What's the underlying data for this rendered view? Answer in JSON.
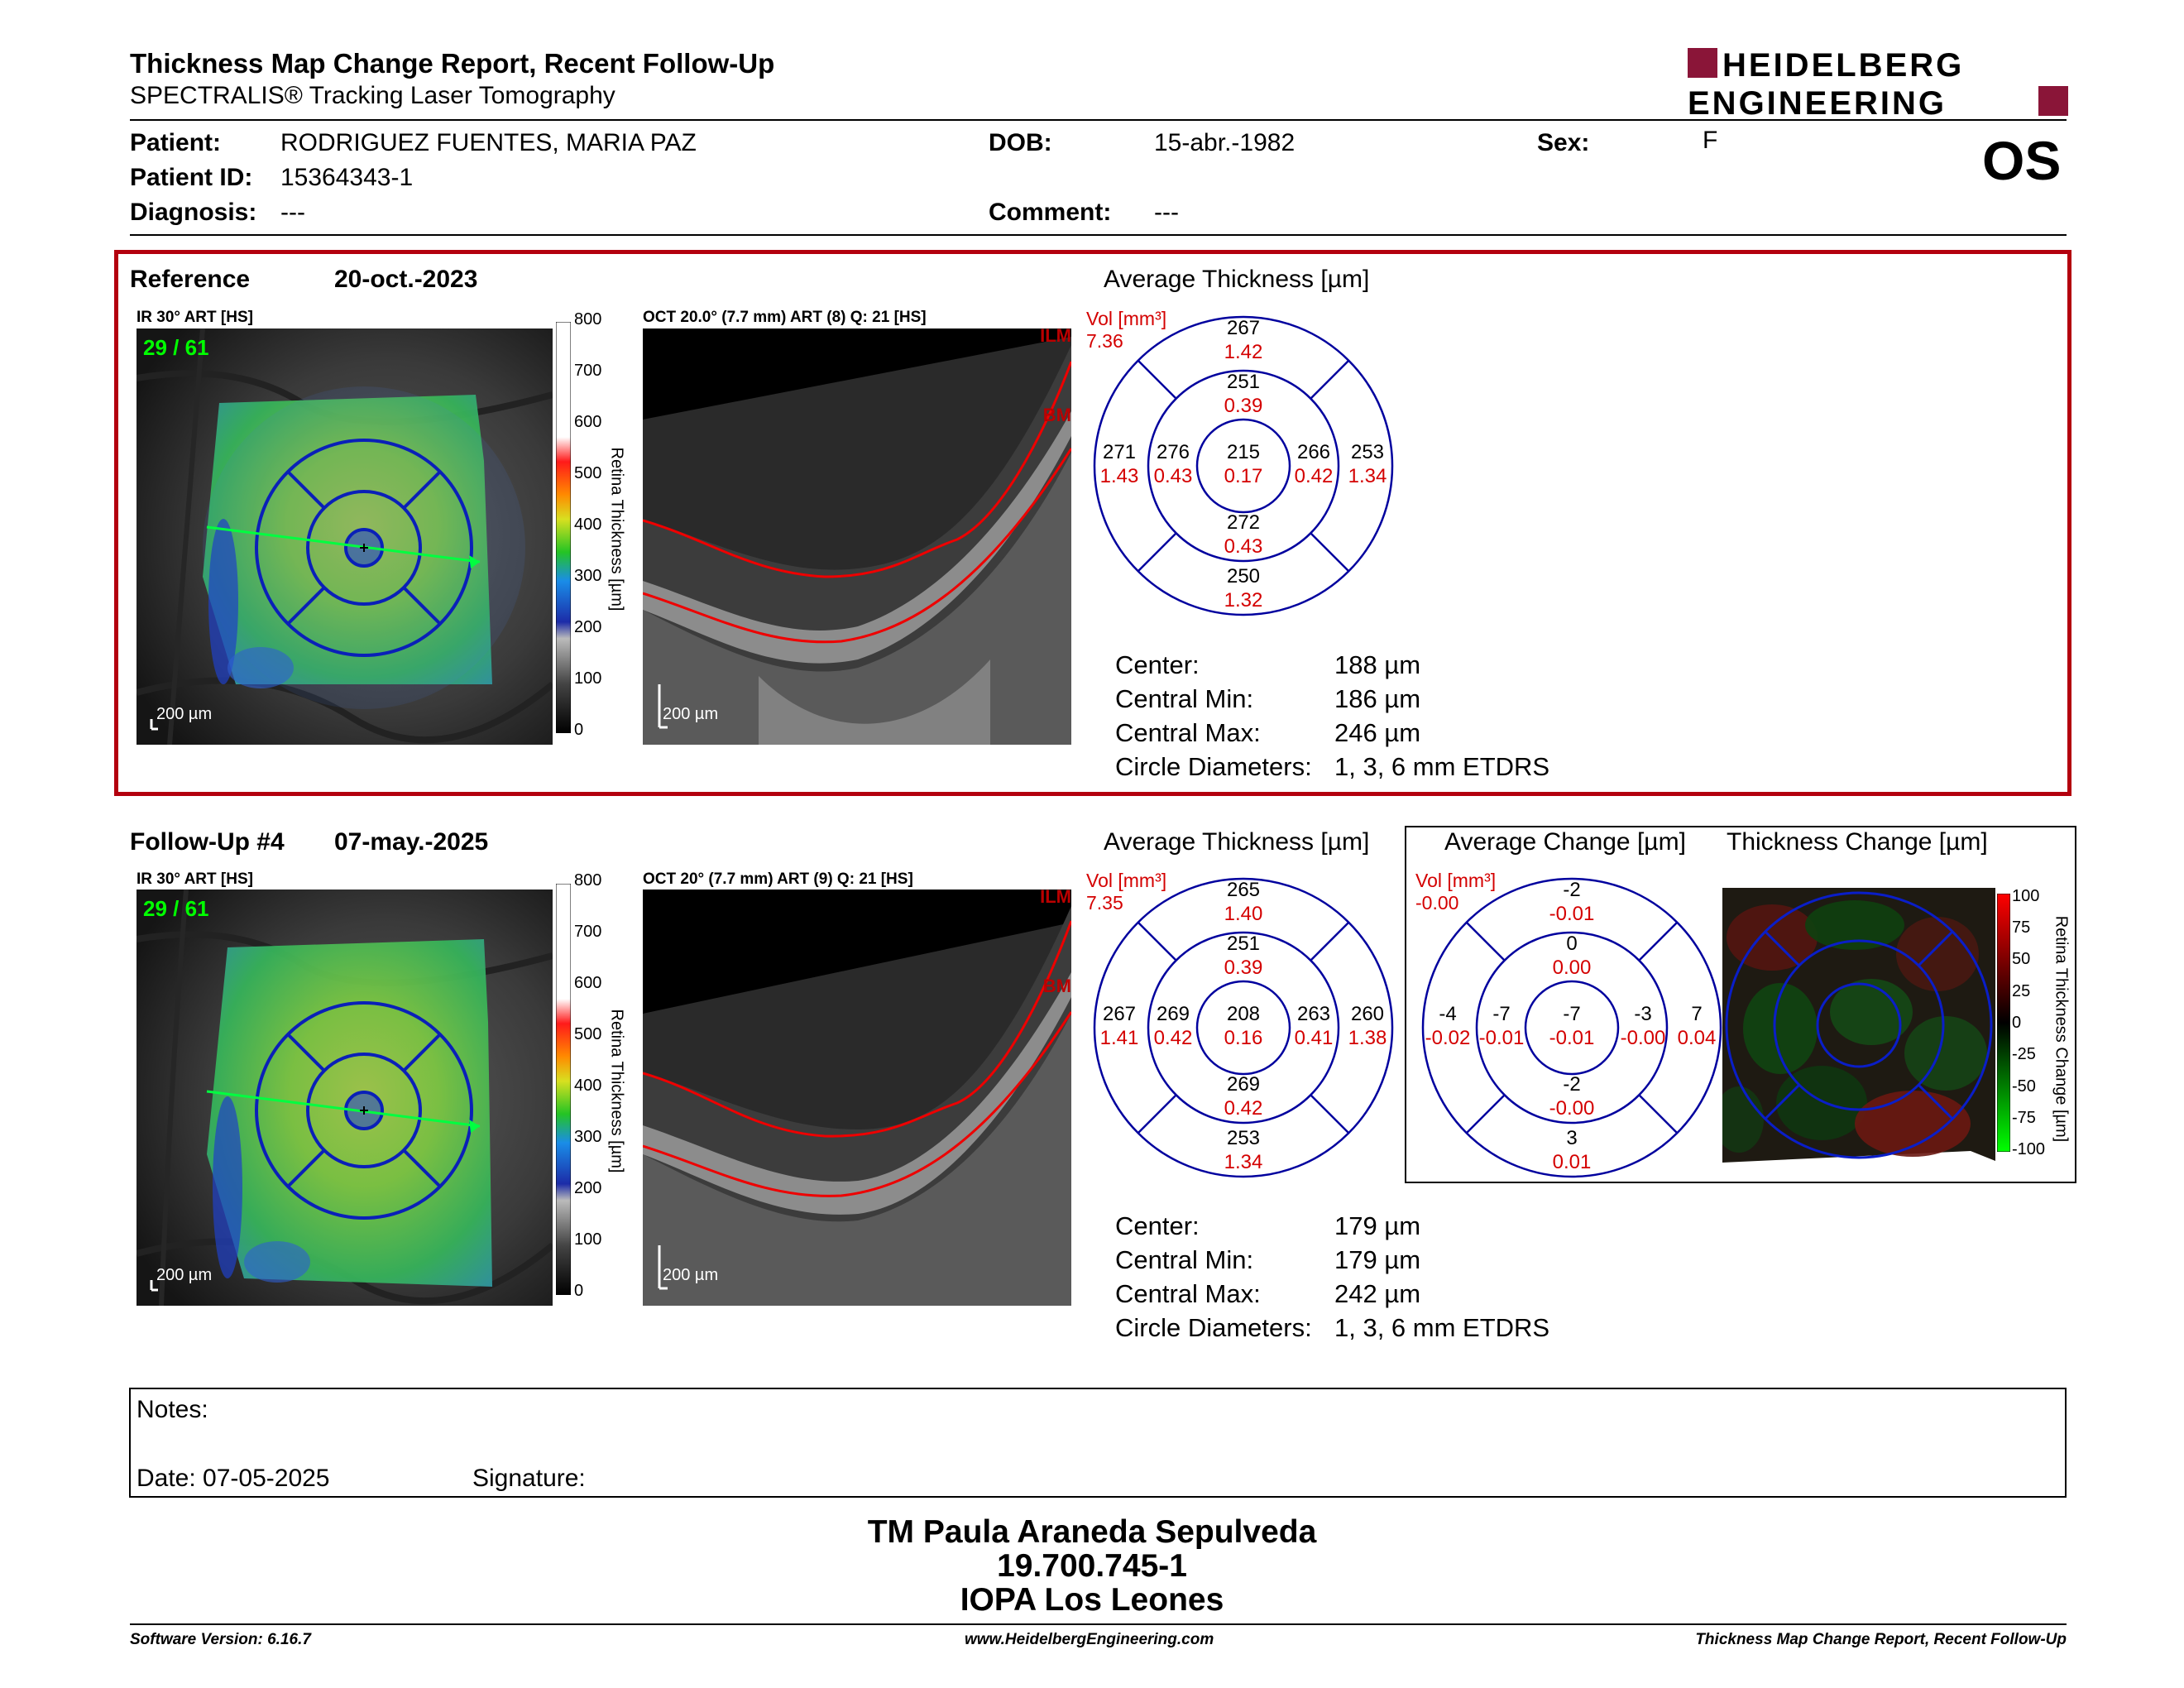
{
  "header": {
    "title": "Thickness Map Change Report, Recent Follow-Up",
    "subtitle": "SPECTRALIS® Tracking Laser Tomography",
    "logo_line1": "HEIDELBERG",
    "logo_line2": "ENGINEERING",
    "eye": "OS"
  },
  "patient": {
    "patient_label": "Patient:",
    "patient_value": "RODRIGUEZ FUENTES, MARIA PAZ",
    "id_label": "Patient ID:",
    "id_value": "15364343-1",
    "diagnosis_label": "Diagnosis:",
    "diagnosis_value": "---",
    "dob_label": "DOB:",
    "dob_value": "15-abr.-1982",
    "comment_label": "Comment:",
    "comment_value": "---",
    "sex_label": "Sex:",
    "sex_value": "F"
  },
  "colorbar_ticks": [
    "800",
    "700",
    "600",
    "500",
    "400",
    "300",
    "200",
    "100",
    "0"
  ],
  "colorbar_label": "Retina Thickness [µm]",
  "reference": {
    "label": "Reference",
    "date": "20-oct.-2023",
    "ir_caption": "IR 30° ART [HS]",
    "oct_caption": "OCT 20.0° (7.7 mm) ART (8) Q: 21 [HS]",
    "frame": "29 / 61",
    "scale": "200 µm",
    "oct_scale": "200 µm",
    "ilm": "ILM",
    "bm": "BM",
    "avg_title": "Average Thickness [µm]",
    "vol_label": "Vol [mm³]",
    "vol_value": "7.36",
    "sectors": {
      "outer_sup": [
        "267",
        "1.42"
      ],
      "inner_sup": [
        "251",
        "0.39"
      ],
      "outer_temp": [
        "271",
        "1.43"
      ],
      "inner_temp": [
        "276",
        "0.43"
      ],
      "center": [
        "215",
        "0.17"
      ],
      "inner_nas": [
        "266",
        "0.42"
      ],
      "outer_nas": [
        "253",
        "1.34"
      ],
      "inner_inf": [
        "272",
        "0.43"
      ],
      "outer_inf": [
        "250",
        "1.32"
      ]
    },
    "stats": [
      [
        "Center:",
        "188 µm"
      ],
      [
        "Central Min:",
        "186 µm"
      ],
      [
        "Central Max:",
        "246 µm"
      ],
      [
        "Circle Diameters:",
        "1, 3, 6 mm ETDRS"
      ]
    ]
  },
  "followup": {
    "label": "Follow-Up #4",
    "date": "07-may.-2025",
    "ir_caption": "IR 30° ART [HS]",
    "oct_caption": "OCT 20° (7.7 mm) ART (9) Q: 21 [HS]",
    "frame": "29 / 61",
    "scale": "200 µm",
    "oct_scale": "200 µm",
    "ilm": "ILM",
    "bm": "BM",
    "avg_title": "Average Thickness [µm]",
    "vol_label": "Vol [mm³]",
    "vol_value": "7.35",
    "sectors": {
      "outer_sup": [
        "265",
        "1.40"
      ],
      "inner_sup": [
        "251",
        "0.39"
      ],
      "outer_temp": [
        "267",
        "1.41"
      ],
      "inner_temp": [
        "269",
        "0.42"
      ],
      "center": [
        "208",
        "0.16"
      ],
      "inner_nas": [
        "263",
        "0.41"
      ],
      "outer_nas": [
        "260",
        "1.38"
      ],
      "inner_inf": [
        "269",
        "0.42"
      ],
      "outer_inf": [
        "253",
        "1.34"
      ]
    },
    "stats": [
      [
        "Center:",
        "179 µm"
      ],
      [
        "Central Min:",
        "179 µm"
      ],
      [
        "Central Max:",
        "242 µm"
      ],
      [
        "Circle Diameters:",
        "1, 3, 6 mm ETDRS"
      ]
    ],
    "change_title": "Average Change [µm]",
    "change_vol_label": "Vol [mm³]",
    "change_vol_value": "-0.00",
    "change_sectors": {
      "outer_sup": [
        "-2",
        "-0.01"
      ],
      "inner_sup": [
        "0",
        "0.00"
      ],
      "outer_temp": [
        "-4",
        "-0.02"
      ],
      "inner_temp": [
        "-7",
        "-0.01"
      ],
      "center": [
        "-7",
        "-0.01"
      ],
      "inner_nas": [
        "-3",
        "-0.00"
      ],
      "outer_nas": [
        "7",
        "0.04"
      ],
      "inner_inf": [
        "-2",
        "-0.00"
      ],
      "outer_inf": [
        "3",
        "0.01"
      ]
    },
    "thickness_change_title": "Thickness Change [µm]",
    "change_ticks": [
      "100",
      "75",
      "50",
      "25",
      "0",
      "-25",
      "-50",
      "-75",
      "-100"
    ],
    "change_bar_label": "Retina Thickness Change [µm]"
  },
  "notes": {
    "notes_label": "Notes:",
    "date_label": "Date: 07-05-2025",
    "signature_label": "Signature:"
  },
  "signature": {
    "name": "TM Paula Araneda Sepulveda",
    "rut": "19.700.745-1",
    "clinic": "IOPA Los Leones"
  },
  "footer": {
    "software": "Software Version: 6.16.7",
    "website": "www.HeidelbergEngineering.com",
    "report": "Thickness Map Change Report, Recent Follow-Up"
  },
  "colors": {
    "red": "#b3000e",
    "logo_red": "#8a1538",
    "sector_blue": "#00009e",
    "volume_red": "#d40000",
    "frame_green": "#00ff00"
  }
}
